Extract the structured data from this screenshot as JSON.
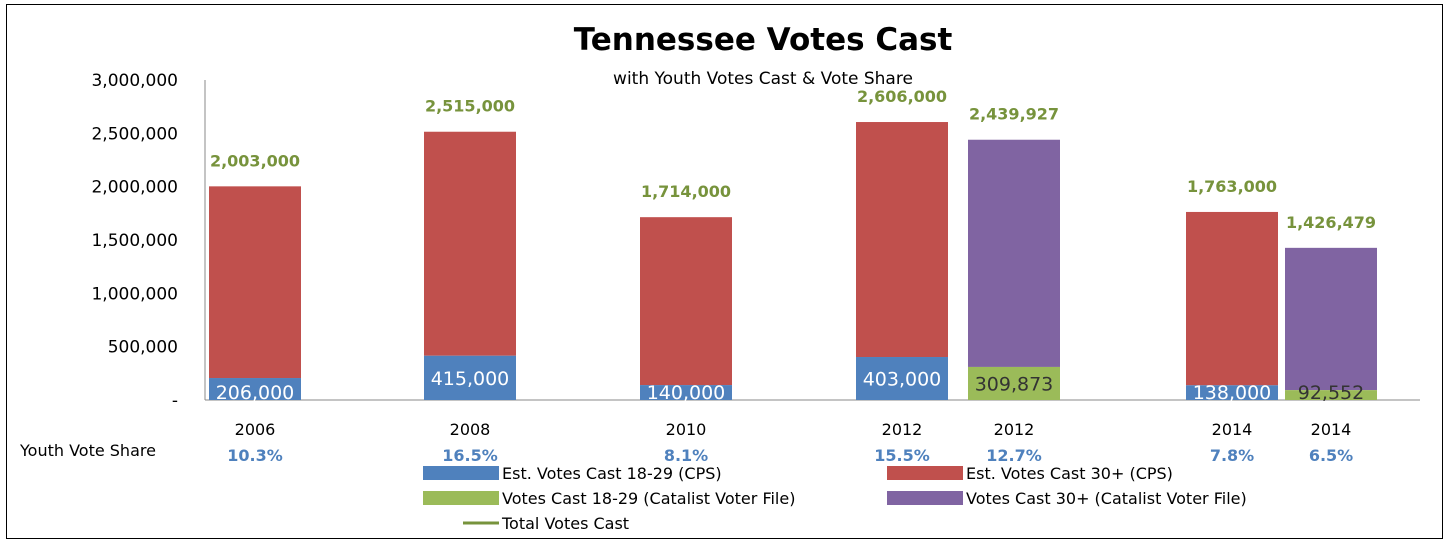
{
  "chart_data": {
    "type": "bar",
    "title": "Tennessee Votes Cast",
    "subtitle": "with Youth Votes Cast & Vote Share",
    "ylim": [
      0,
      3000000
    ],
    "yticks": [
      {
        "value": 0,
        "label": "-"
      },
      {
        "value": 500000,
        "label": "500,000"
      },
      {
        "value": 1000000,
        "label": "1,000,000"
      },
      {
        "value": 1500000,
        "label": "1,500,000"
      },
      {
        "value": 2000000,
        "label": "2,000,000"
      },
      {
        "value": 2500000,
        "label": "2,500,000"
      },
      {
        "value": 3000000,
        "label": "3,000,000"
      }
    ],
    "categories": [
      "2006",
      "2008",
      "2010",
      "2012",
      "2012",
      "2014",
      "2014"
    ],
    "share_title": "Youth Vote Share",
    "bars": [
      {
        "year": "2006",
        "source": "CPS",
        "youth": 206000,
        "youth_label": "206,000",
        "total": 2003000,
        "total_label": "2,003,000",
        "share": "10.3%"
      },
      {
        "year": "2008",
        "source": "CPS",
        "youth": 415000,
        "youth_label": "415,000",
        "total": 2515000,
        "total_label": "2,515,000",
        "share": "16.5%"
      },
      {
        "year": "2010",
        "source": "CPS",
        "youth": 140000,
        "youth_label": "140,000",
        "total": 1714000,
        "total_label": "1,714,000",
        "share": "8.1%"
      },
      {
        "year": "2012",
        "source": "CPS",
        "youth": 403000,
        "youth_label": "403,000",
        "total": 2606000,
        "total_label": "2,606,000",
        "share": "15.5%"
      },
      {
        "year": "2012",
        "source": "Catalist",
        "youth": 309873,
        "youth_label": "309,873",
        "total": 2439927,
        "total_label": "2,439,927",
        "share": "12.7%"
      },
      {
        "year": "2014",
        "source": "CPS",
        "youth": 138000,
        "youth_label": "138,000",
        "total": 1763000,
        "total_label": "1,763,000",
        "share": "7.8%"
      },
      {
        "year": "2014",
        "source": "Catalist",
        "youth": 92552,
        "youth_label": "92,552",
        "total": 1426479,
        "total_label": "1,426,479",
        "share": "6.5%"
      }
    ],
    "series": [
      {
        "name": "Est. Votes Cast 18-29 (CPS)",
        "color": "#4f81bd"
      },
      {
        "name": "Est. Votes Cast 30+ (CPS)",
        "color": "#c0504d"
      },
      {
        "name": "Votes Cast 18-29 (Catalist Voter File)",
        "color": "#9bbb59"
      },
      {
        "name": "Votes Cast 30+ (Catalist Voter File)",
        "color": "#8064a2"
      },
      {
        "name": "Total Votes Cast",
        "color": "#77933c"
      }
    ],
    "colors": {
      "total_label": "#77933c",
      "share_label": "#4f81bd"
    },
    "grid": false,
    "legend_position": "bottom"
  }
}
